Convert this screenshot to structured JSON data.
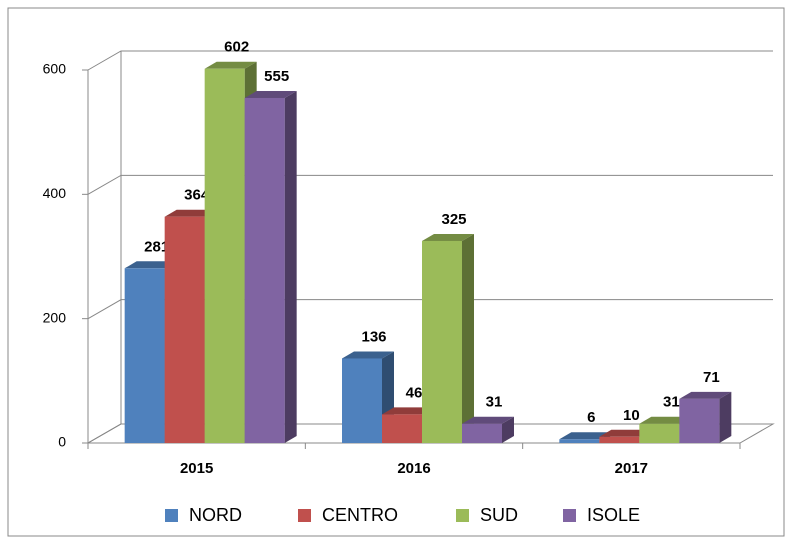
{
  "chart_data": {
    "type": "bar3d",
    "categories": [
      "2015",
      "2016",
      "2017"
    ],
    "series": [
      {
        "name": "NORD",
        "color": "#4f81bd",
        "values": [
          281,
          136,
          6
        ]
      },
      {
        "name": "CENTRO",
        "color": "#c0504d",
        "values": [
          364,
          46,
          10
        ]
      },
      {
        "name": "SUD",
        "color": "#9bbb59",
        "values": [
          602,
          325,
          31
        ]
      },
      {
        "name": "ISOLE",
        "color": "#8064a2",
        "values": [
          555,
          31,
          71
        ]
      }
    ],
    "ylim": [
      0,
      600
    ],
    "yticks": [
      0,
      200,
      400,
      600
    ],
    "grid": true,
    "legend": "bottom"
  }
}
